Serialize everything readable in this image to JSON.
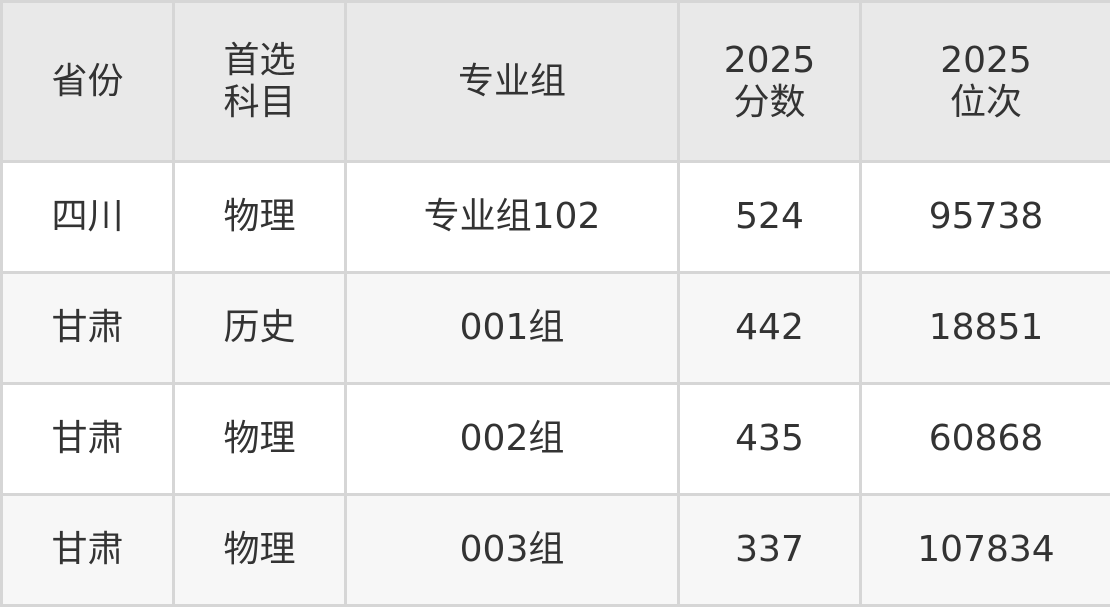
{
  "table": {
    "headers": [
      [
        "省份"
      ],
      [
        "首选",
        "科目"
      ],
      [
        "专业组"
      ],
      [
        "2025",
        "分数"
      ],
      [
        "2025",
        "位次"
      ]
    ],
    "rows": [
      [
        "四川",
        "物理",
        "专业组102",
        "524",
        "95738"
      ],
      [
        "甘肃",
        "历史",
        "001组",
        "442",
        "18851"
      ],
      [
        "甘肃",
        "物理",
        "002组",
        "435",
        "60868"
      ],
      [
        "甘肃",
        "物理",
        "003组",
        "337",
        "107834"
      ]
    ]
  },
  "colors": {
    "header_bg": "#e9e9e9",
    "stripe_bg": "#f7f7f7",
    "border": "#d6d6d6",
    "text": "#333333"
  }
}
